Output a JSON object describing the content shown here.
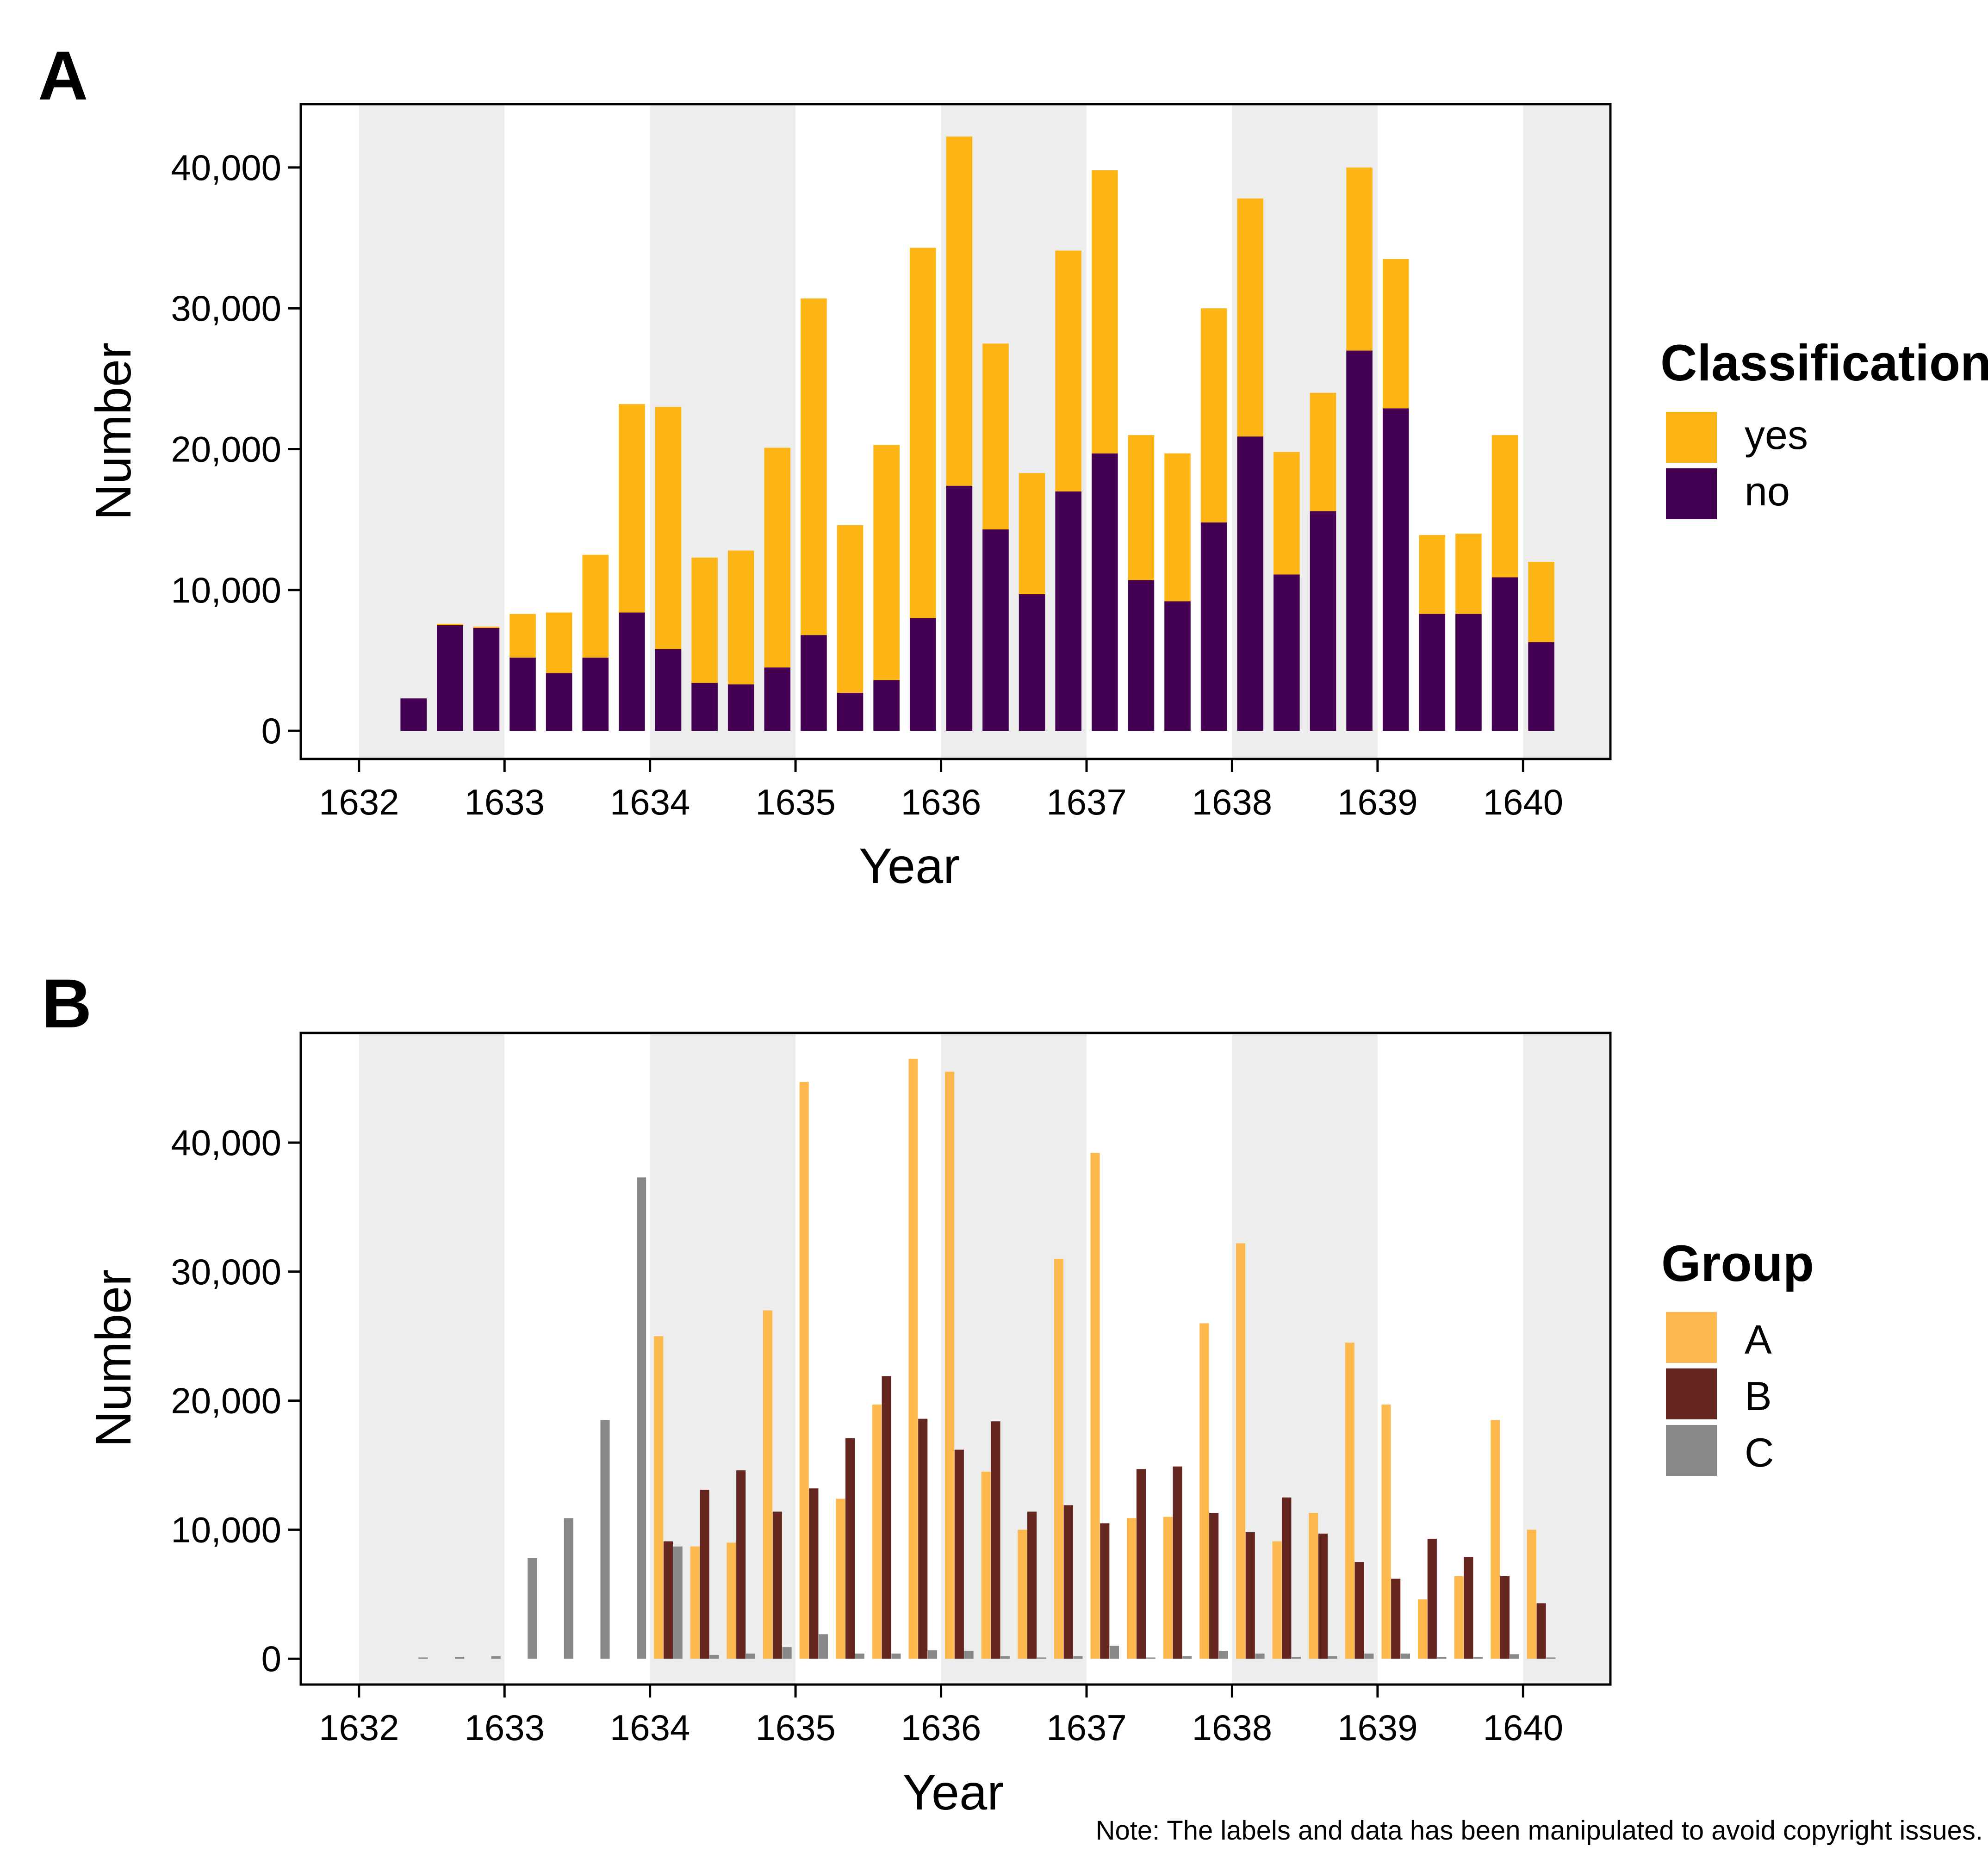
{
  "panels": {
    "a": {
      "letter": "A"
    },
    "b": {
      "letter": "B"
    }
  },
  "note": "Note: The labels and data has been manipulated to avoid copyright issues.",
  "colors": {
    "yes": "#FDB515",
    "no": "#440154",
    "A": "#FDB94D",
    "B": "#662620",
    "C": "#888888",
    "band": "#EDEDED"
  },
  "chart_data": [
    {
      "panel": "A",
      "type": "bar",
      "stacked": true,
      "xlabel": "Year",
      "ylabel": "Number",
      "xlim": [
        1631.6,
        1640.6
      ],
      "ylim": [
        -2000,
        44500
      ],
      "x_ticks": [
        1632,
        1633,
        1634,
        1635,
        1636,
        1637,
        1638,
        1639,
        1640
      ],
      "y_ticks": [
        0,
        10000,
        20000,
        30000,
        40000
      ],
      "y_tick_labels": [
        "0",
        "10,000",
        "20,000",
        "30,000",
        "40,000"
      ],
      "x_tick_labels": [
        "1632",
        "1633",
        "1634",
        "1635",
        "1636",
        "1637",
        "1638",
        "1639",
        "1640"
      ],
      "legend": {
        "title": "Classification",
        "position": "right"
      },
      "x": [
        1632.375,
        1632.625,
        1632.875,
        1633.125,
        1633.375,
        1633.625,
        1633.875,
        1634.125,
        1634.375,
        1634.625,
        1634.875,
        1635.125,
        1635.375,
        1635.625,
        1635.875,
        1636.125,
        1636.375,
        1636.625,
        1636.875,
        1637.125,
        1637.375,
        1637.625,
        1637.875,
        1638.125,
        1638.375,
        1638.625,
        1638.875,
        1639.125,
        1639.375,
        1639.625,
        1639.875,
        1640.125
      ],
      "series": [
        {
          "name": "no",
          "values": [
            2300,
            7500,
            7300,
            5200,
            4100,
            5200,
            8400,
            5800,
            3400,
            3300,
            4500,
            6800,
            2700,
            3600,
            8000,
            17400,
            14300,
            9700,
            17000,
            19700,
            10700,
            9200,
            14800,
            20900,
            11100,
            15600,
            27000,
            22900,
            8300,
            8300,
            10900,
            6300
          ]
        },
        {
          "name": "yes",
          "values": [
            0,
            100,
            100,
            3100,
            4300,
            7300,
            14800,
            17200,
            8900,
            9500,
            15600,
            23900,
            11900,
            16700,
            26300,
            24800,
            13200,
            8600,
            17100,
            20100,
            10300,
            10500,
            15200,
            16900,
            8700,
            8400,
            13000,
            10600,
            5600,
            5700,
            10100,
            5700
          ]
        }
      ]
    },
    {
      "panel": "B",
      "type": "bar",
      "stacked": false,
      "xlabel": "Year",
      "ylabel": "Number",
      "xlim": [
        1631.6,
        1640.6
      ],
      "ylim": [
        -2000,
        48500
      ],
      "x_ticks": [
        1632,
        1633,
        1634,
        1635,
        1636,
        1637,
        1638,
        1639,
        1640
      ],
      "y_ticks": [
        0,
        10000,
        20000,
        30000,
        40000
      ],
      "y_tick_labels": [
        "0",
        "10,000",
        "20,000",
        "30,000",
        "40,000"
      ],
      "x_tick_labels": [
        "1632",
        "1633",
        "1634",
        "1635",
        "1636",
        "1637",
        "1638",
        "1639",
        "1640"
      ],
      "legend": {
        "title": "Group",
        "position": "right"
      },
      "x": [
        1632.375,
        1632.625,
        1632.875,
        1633.125,
        1633.375,
        1633.625,
        1633.875,
        1634.125,
        1634.375,
        1634.625,
        1634.875,
        1635.125,
        1635.375,
        1635.625,
        1635.875,
        1636.125,
        1636.375,
        1636.625,
        1636.875,
        1637.125,
        1637.375,
        1637.625,
        1637.875,
        1638.125,
        1638.375,
        1638.625,
        1638.875,
        1639.125,
        1639.375,
        1639.625,
        1639.875,
        1640.125
      ],
      "series": [
        {
          "name": "A",
          "values": [
            0,
            0,
            0,
            0,
            0,
            0,
            0,
            25000,
            8700,
            9000,
            27000,
            44700,
            12400,
            19700,
            46500,
            45500,
            14500,
            10000,
            31000,
            39200,
            10900,
            11000,
            26000,
            32200,
            9100,
            11300,
            24500,
            19700,
            4600,
            6400,
            18500,
            10000
          ]
        },
        {
          "name": "B",
          "values": [
            0,
            0,
            0,
            0,
            0,
            0,
            0,
            9100,
            13100,
            14600,
            11400,
            13200,
            17100,
            21900,
            18600,
            16200,
            18400,
            11400,
            11900,
            10500,
            14700,
            14900,
            11300,
            9800,
            12500,
            9700,
            7500,
            6200,
            9300,
            7900,
            6400,
            4300
          ]
        },
        {
          "name": "C",
          "values": [
            100,
            150,
            200,
            7800,
            10900,
            18500,
            37300,
            8700,
            300,
            400,
            900,
            1900,
            400,
            400,
            650,
            600,
            200,
            100,
            200,
            1000,
            100,
            200,
            600,
            400,
            150,
            200,
            400,
            400,
            150,
            150,
            350,
            100
          ]
        }
      ]
    }
  ]
}
